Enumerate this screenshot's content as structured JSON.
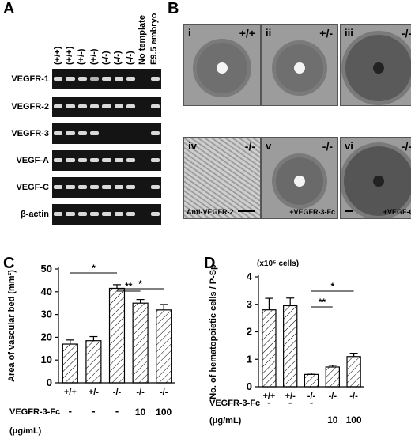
{
  "panel_a": {
    "letter": "A",
    "columns": [
      "(+/+)",
      "(+/+)",
      "(+/-)",
      "(+/-)",
      "(-/-)",
      "(-/-)",
      "(-/-)",
      "No template",
      "E9.5 embryo"
    ],
    "rows": [
      {
        "label": "VEGFR-1",
        "bands": [
          1,
          1,
          1,
          0.8,
          1,
          1,
          1,
          0,
          1
        ]
      },
      {
        "label": "VEGFR-2",
        "bands": [
          1,
          1,
          1,
          1,
          1,
          1,
          1,
          0,
          1
        ]
      },
      {
        "label": "VEGFR-3",
        "bands": [
          1,
          1,
          1,
          1,
          0,
          0,
          0,
          0,
          1
        ]
      },
      {
        "label": "VEGF-A",
        "bands": [
          1,
          1,
          1,
          1,
          1,
          1,
          1,
          0,
          1
        ]
      },
      {
        "label": "VEGF-C",
        "bands": [
          1,
          1,
          1,
          1,
          1,
          1,
          1,
          0,
          1
        ]
      },
      {
        "label": "β-actin",
        "bands": [
          1,
          1,
          1,
          1,
          1,
          1,
          1,
          0,
          1
        ]
      }
    ]
  },
  "panel_b": {
    "letter": "B",
    "photos": [
      {
        "roman": "i",
        "genotype": "+/+",
        "note": ""
      },
      {
        "roman": "ii",
        "genotype": "+/-",
        "note": ""
      },
      {
        "roman": "iii",
        "genotype": "-/-",
        "note": ""
      },
      {
        "roman": "iv",
        "genotype": "-/-",
        "note": "Anti-VEGFR-2"
      },
      {
        "roman": "v",
        "genotype": "-/-",
        "note": "+VEGFR-3-Fc"
      },
      {
        "roman": "vi",
        "genotype": "-/-",
        "note": "+VEGF-C"
      }
    ]
  },
  "chart_data": [
    {
      "type": "bar",
      "panel": "C",
      "ylabel": "Area of vascular bed (mm²)",
      "ylim": [
        0,
        50
      ],
      "yticks": [
        0,
        10,
        20,
        30,
        40,
        50
      ],
      "categories": [
        "+/+",
        "+/-",
        "-/-",
        "-/-",
        "-/-"
      ],
      "treatment_label": "VEGFR-3-Fc",
      "treatment_unit": "(μg/mL)",
      "treatment": [
        "-",
        "-",
        "-",
        "10",
        "100"
      ],
      "values": [
        17,
        18.5,
        41.5,
        35,
        32
      ],
      "errors": [
        1.8,
        1.8,
        1.6,
        1.6,
        2.4
      ],
      "significance": [
        {
          "from": 0,
          "to": 2,
          "label": "*"
        },
        {
          "from": 2,
          "to": 3,
          "label": "**"
        },
        {
          "from": 2,
          "to": 4,
          "label": "*"
        }
      ]
    },
    {
      "type": "bar",
      "panel": "D",
      "ylabel": "No. of hematopoietic cells / P-Sp",
      "unit_label": "(x10⁵ cells)",
      "ylim": [
        0,
        4
      ],
      "yticks": [
        0,
        1,
        2,
        3,
        4
      ],
      "categories": [
        "+/+",
        "+/-",
        "-/-",
        "-/-",
        "-/-"
      ],
      "treatment_label": "VEGFR-3-Fc",
      "treatment_unit": "(μg/mL)",
      "treatment": [
        "-",
        "-",
        "-",
        "10",
        "100"
      ],
      "values": [
        2.8,
        2.95,
        0.45,
        0.72,
        1.1
      ],
      "errors": [
        0.42,
        0.28,
        0.05,
        0.06,
        0.12
      ],
      "significance": [
        {
          "from": 2,
          "to": 3,
          "label": "**"
        },
        {
          "from": 2,
          "to": 4,
          "label": "*"
        }
      ]
    }
  ]
}
